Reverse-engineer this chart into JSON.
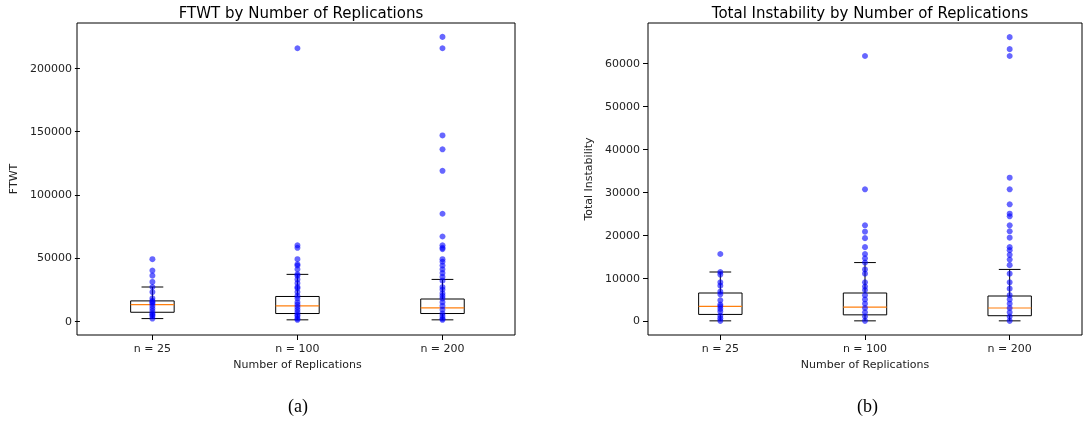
{
  "chart_data": [
    {
      "type": "box",
      "title": "FTWT by Number of Replications",
      "xlabel": "Number of Replications",
      "ylabel": "FTWT",
      "annotations": [
        "(a)"
      ],
      "categories": [
        "n = 25",
        "n = 100",
        "n = 200"
      ],
      "ylim": [
        -11000,
        236000
      ],
      "yticks": [
        0,
        50000,
        100000,
        150000,
        200000
      ],
      "marker": "circle",
      "series": [
        {
          "type": "box",
          "color": "#000000",
          "boxes": [
            {
              "low": 2000,
              "q1": 7000,
              "median": 13000,
              "q3": 16000,
              "high": 27000
            },
            {
              "low": 1000,
              "q1": 6000,
              "median": 12000,
              "q3": 19500,
              "high": 37000
            },
            {
              "low": 1000,
              "q1": 6000,
              "median": 10500,
              "q3": 17500,
              "high": 33000
            }
          ]
        },
        {
          "type": "scatter",
          "color": "#0000ff",
          "x": [
            "n = 25",
            "n = 25",
            "n = 25",
            "n = 25",
            "n = 25",
            "n = 25",
            "n = 25",
            "n = 25",
            "n = 25",
            "n = 25",
            "n = 25",
            "n = 25",
            "n = 25",
            "n = 25",
            "n = 25",
            "n = 25",
            "n = 25",
            "n = 100",
            "n = 100",
            "n = 100",
            "n = 100",
            "n = 100",
            "n = 100",
            "n = 100",
            "n = 100",
            "n = 100",
            "n = 100",
            "n = 100",
            "n = 100",
            "n = 100",
            "n = 100",
            "n = 100",
            "n = 100",
            "n = 100",
            "n = 100",
            "n = 100",
            "n = 100",
            "n = 100",
            "n = 100",
            "n = 100",
            "n = 100",
            "n = 100",
            "n = 200",
            "n = 200",
            "n = 200",
            "n = 200",
            "n = 200",
            "n = 200",
            "n = 200",
            "n = 200",
            "n = 200",
            "n = 200",
            "n = 200",
            "n = 200",
            "n = 200",
            "n = 200",
            "n = 200",
            "n = 200",
            "n = 200",
            "n = 200",
            "n = 200",
            "n = 200",
            "n = 200",
            "n = 200",
            "n = 200",
            "n = 200",
            "n = 200",
            "n = 200",
            "n = 200",
            "n = 200",
            "n = 200"
          ],
          "values": [
            49000,
            40000,
            36000,
            31000,
            27000,
            23000,
            18000,
            16000,
            15000,
            14000,
            12000,
            10000,
            8000,
            6000,
            5000,
            4000,
            2000,
            216000,
            60000,
            58000,
            49000,
            45000,
            44000,
            41000,
            37000,
            36000,
            33000,
            30000,
            27000,
            26000,
            23000,
            20000,
            18000,
            15000,
            13000,
            11000,
            9000,
            7000,
            5000,
            4000,
            2000,
            1000,
            225000,
            216000,
            147000,
            136000,
            119000,
            85000,
            67000,
            60000,
            58000,
            57000,
            49000,
            47000,
            44000,
            41000,
            38000,
            35000,
            32000,
            27000,
            25000,
            22000,
            20000,
            18000,
            15000,
            12000,
            9000,
            6000,
            4000,
            2000,
            1000
          ]
        }
      ]
    },
    {
      "type": "box",
      "title": "Total Instability by Number of Replications",
      "xlabel": "Number of Replications",
      "ylabel": "Total Instability",
      "annotations": [
        "(b)"
      ],
      "categories": [
        "n = 25",
        "n = 100",
        "n = 200"
      ],
      "ylim": [
        -3300,
        69500
      ],
      "yticks": [
        0,
        10000,
        20000,
        30000,
        40000,
        50000,
        60000
      ],
      "marker": "circle",
      "series": [
        {
          "type": "box",
          "color": "#000000",
          "boxes": [
            {
              "low": 0,
              "q1": 1500,
              "median": 3400,
              "q3": 6500,
              "high": 11400
            },
            {
              "low": 0,
              "q1": 1400,
              "median": 3200,
              "q3": 6500,
              "high": 13600
            },
            {
              "low": 0,
              "q1": 1200,
              "median": 3000,
              "q3": 5800,
              "high": 12000
            }
          ]
        },
        {
          "type": "scatter",
          "color": "#0000ff",
          "x": [
            "n = 25",
            "n = 25",
            "n = 25",
            "n = 25",
            "n = 25",
            "n = 25",
            "n = 25",
            "n = 25",
            "n = 25",
            "n = 25",
            "n = 25",
            "n = 25",
            "n = 25",
            "n = 25",
            "n = 25",
            "n = 100",
            "n = 100",
            "n = 100",
            "n = 100",
            "n = 100",
            "n = 100",
            "n = 100",
            "n = 100",
            "n = 100",
            "n = 100",
            "n = 100",
            "n = 100",
            "n = 100",
            "n = 100",
            "n = 100",
            "n = 100",
            "n = 100",
            "n = 100",
            "n = 100",
            "n = 100",
            "n = 100",
            "n = 200",
            "n = 200",
            "n = 200",
            "n = 200",
            "n = 200",
            "n = 200",
            "n = 200",
            "n = 200",
            "n = 200",
            "n = 200",
            "n = 200",
            "n = 200",
            "n = 200",
            "n = 200",
            "n = 200",
            "n = 200",
            "n = 200",
            "n = 200",
            "n = 200",
            "n = 200",
            "n = 200",
            "n = 200",
            "n = 200",
            "n = 200",
            "n = 200",
            "n = 200"
          ],
          "values": [
            15600,
            11400,
            10800,
            9000,
            8200,
            6800,
            6200,
            4800,
            3800,
            3400,
            2800,
            2200,
            1200,
            600,
            0,
            61800,
            30700,
            22300,
            20800,
            19300,
            17200,
            15600,
            14600,
            13600,
            12000,
            11000,
            9000,
            8000,
            7200,
            6000,
            5000,
            4000,
            3000,
            2000,
            1000,
            0,
            66200,
            63400,
            61800,
            33400,
            30700,
            27200,
            25000,
            24400,
            22300,
            20900,
            19400,
            17200,
            16500,
            15400,
            14300,
            13000,
            11000,
            9000,
            7500,
            6000,
            5000,
            4000,
            3000,
            2000,
            1000,
            0
          ]
        }
      ]
    }
  ]
}
